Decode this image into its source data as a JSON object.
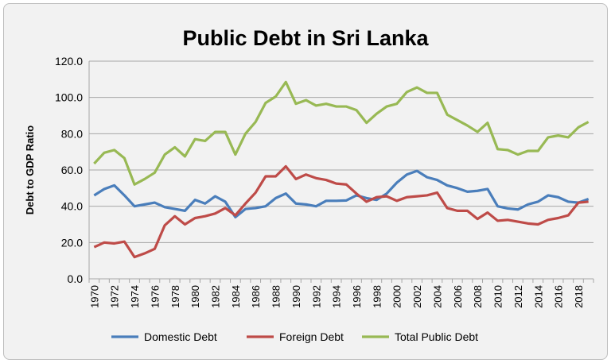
{
  "chart_data": {
    "type": "line",
    "title": "Public Debt in Sri Lanka",
    "xlabel": "",
    "ylabel": "Debt to GDP Ratio",
    "ylim": [
      0,
      120
    ],
    "yticks": [
      "0.0",
      "20.0",
      "40.0",
      "60.0",
      "80.0",
      "100.0",
      "120.0"
    ],
    "grid": true,
    "legend": "bottom",
    "x": [
      1970,
      1971,
      1972,
      1973,
      1974,
      1975,
      1976,
      1977,
      1978,
      1979,
      1980,
      1981,
      1982,
      1983,
      1984,
      1985,
      1986,
      1987,
      1988,
      1989,
      1990,
      1991,
      1992,
      1993,
      1994,
      1995,
      1996,
      1997,
      1998,
      1999,
      2000,
      2001,
      2002,
      2003,
      2004,
      2005,
      2006,
      2007,
      2008,
      2009,
      2010,
      2011,
      2012,
      2013,
      2014,
      2015,
      2016,
      2017,
      2018,
      2019
    ],
    "xtick_labels": [
      "1970",
      "1972",
      "1974",
      "1976",
      "1978",
      "1980",
      "1982",
      "1984",
      "1986",
      "1988",
      "1990",
      "1992",
      "1994",
      "1996",
      "1998",
      "2000",
      "2002",
      "2004",
      "2006",
      "2008",
      "2010",
      "2012",
      "2014",
      "2016",
      "2018"
    ],
    "series": [
      {
        "name": "Domestic Debt",
        "color": "#4a7ebb",
        "values": [
          46,
          49.5,
          51.5,
          46,
          40,
          41,
          42,
          39.5,
          38.5,
          37.5,
          43.5,
          41.5,
          45.5,
          42.5,
          34,
          38.5,
          39,
          40,
          44.5,
          47,
          41.5,
          41,
          40,
          43,
          43,
          43.2,
          46,
          44.5,
          43.5,
          47,
          53,
          57.5,
          59.5,
          56,
          54.5,
          51.5,
          50,
          48,
          48.5,
          49.5,
          40,
          38.8,
          38.2,
          41,
          42.5,
          46,
          45,
          42.5,
          42,
          44
        ]
      },
      {
        "name": "Foreign Debt",
        "color": "#be4b48",
        "values": [
          17.5,
          20,
          19.5,
          20.5,
          12,
          14,
          16.5,
          29.5,
          34.5,
          30,
          33.5,
          34.5,
          36,
          39,
          35,
          41.5,
          47.5,
          56.5,
          56.5,
          62,
          55,
          57.5,
          55.5,
          54.5,
          52.5,
          52,
          47,
          42.5,
          45,
          45.5,
          43,
          45,
          45.5,
          46,
          47.5,
          39,
          37.5,
          37.5,
          33,
          36.5,
          32,
          32.5,
          31.5,
          30.5,
          30,
          32.5,
          33.5,
          35,
          42,
          42.5
        ]
      },
      {
        "name": "Total Public Debt",
        "color": "#98b954",
        "values": [
          63.5,
          69.5,
          71,
          66.5,
          52,
          55,
          58.5,
          68.5,
          72.5,
          67.5,
          77,
          76,
          81,
          81,
          68.5,
          80,
          86.5,
          97,
          100.5,
          108.5,
          96.5,
          98.5,
          95.5,
          96.5,
          95,
          95,
          93,
          86,
          91,
          95,
          96.5,
          103,
          105.5,
          102.5,
          102.5,
          90.5,
          87.5,
          84.5,
          81,
          86,
          71.5,
          71,
          68.5,
          70.5,
          70.5,
          78,
          79,
          78,
          83.5,
          86.5
        ]
      }
    ]
  }
}
